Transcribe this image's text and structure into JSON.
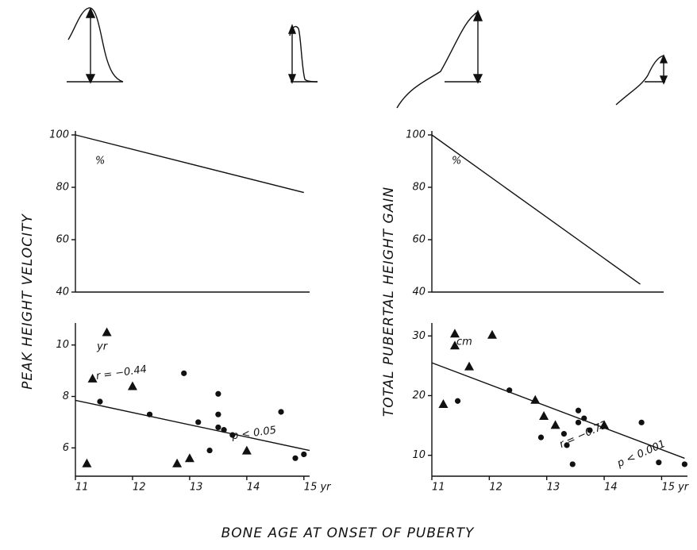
{
  "chart_data": [
    {
      "type": "line",
      "unit": "%",
      "ylabel": "PEAK HEIGHT VELOCITY",
      "xlim": [
        11,
        15.1
      ],
      "ylim": [
        40,
        100
      ],
      "yticks": [
        40,
        60,
        80,
        100
      ],
      "series": [
        {
          "color": "#111111",
          "x": [
            11,
            15
          ],
          "values": [
            100,
            78
          ]
        }
      ]
    },
    {
      "type": "line",
      "unit": "%",
      "ylabel": "TOTAL PUBERTAL HEIGHT GAIN",
      "xlim": [
        11,
        15.45
      ],
      "ylim": [
        40,
        100
      ],
      "yticks": [
        40,
        60,
        80,
        100
      ],
      "series": [
        {
          "color": "#111111",
          "x": [
            11,
            15
          ],
          "values": [
            100,
            43
          ]
        }
      ]
    },
    {
      "type": "scatter",
      "unit": "yr",
      "xlabel": "BONE AGE AT ONSET OF PUBERTY",
      "xlim": [
        11,
        15.1
      ],
      "ylim": [
        4.9,
        10.7
      ],
      "yticks": [
        6,
        8,
        10
      ],
      "xticks": [
        11,
        12,
        13,
        14,
        {
          "value": 15,
          "label": "15 yr"
        }
      ],
      "series": [
        {
          "marker": "triangle",
          "color": "#111111",
          "x": [
            11.2,
            11.3,
            11.55,
            12.0,
            12.78,
            13.0,
            14.0
          ],
          "values": [
            5.4,
            8.7,
            10.5,
            8.4,
            5.4,
            5.6,
            5.9
          ]
        },
        {
          "marker": "circle",
          "color": "#111111",
          "x": [
            11.43,
            12.3,
            12.9,
            13.15,
            13.35,
            13.5,
            13.5,
            13.5,
            13.6,
            13.75,
            14.6,
            14.85,
            15.0
          ],
          "values": [
            7.8,
            7.3,
            8.9,
            7.0,
            5.9,
            8.1,
            7.3,
            6.8,
            6.7,
            6.5,
            7.4,
            5.6,
            5.75
          ]
        }
      ],
      "fit": {
        "x": [
          11,
          15.1
        ],
        "values": [
          7.85,
          5.9
        ]
      },
      "annotations": [
        "r = −0.44",
        "p < 0.05"
      ]
    },
    {
      "type": "scatter",
      "unit": "cm",
      "xlim": [
        11,
        15.45
      ],
      "ylim": [
        6.5,
        31.5
      ],
      "yticks": [
        10,
        20,
        30
      ],
      "xticks": [
        11,
        12,
        13,
        14,
        {
          "value": 15,
          "label": "15 yr"
        }
      ],
      "series": [
        {
          "marker": "triangle",
          "color": "#111111",
          "x": [
            11.2,
            11.4,
            11.4,
            11.65,
            12.05,
            12.8,
            12.95,
            13.15,
            14.0
          ],
          "values": [
            18.6,
            30.4,
            28.4,
            24.9,
            30.2,
            19.3,
            16.6,
            15.1,
            15.1
          ]
        },
        {
          "marker": "circle",
          "color": "#111111",
          "x": [
            11.45,
            12.35,
            12.9,
            13.3,
            13.35,
            13.45,
            13.55,
            13.55,
            13.65,
            13.75,
            14.65,
            14.95,
            15.4
          ],
          "values": [
            19.1,
            20.9,
            13.0,
            13.6,
            11.7,
            8.5,
            17.5,
            15.5,
            16.2,
            14.2,
            15.5,
            8.8,
            8.5
          ]
        }
      ],
      "fit": {
        "x": [
          11,
          15.4
        ],
        "values": [
          25.5,
          9.5
        ]
      },
      "annotations": [
        "r = −0.73",
        "p < 0.001"
      ]
    }
  ]
}
